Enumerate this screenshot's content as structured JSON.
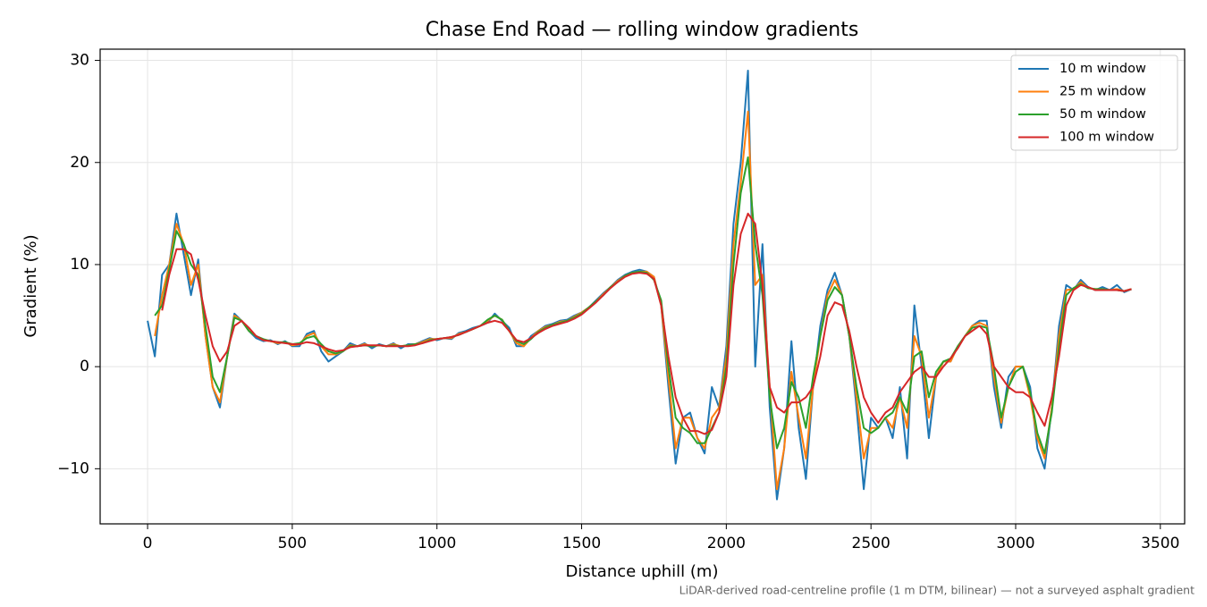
{
  "chart_data": {
    "type": "line",
    "title": "Chase End Road — rolling window gradients",
    "x_label": "Distance uphill (m)",
    "y_label": "Gradient (%)",
    "footnote": "LiDAR-derived road-centreline profile (1 m DTM, bilinear) — not a surveyed asphalt gradient",
    "x": [
      0,
      25,
      50,
      75,
      100,
      125,
      150,
      175,
      200,
      225,
      250,
      275,
      300,
      325,
      350,
      375,
      400,
      425,
      450,
      475,
      500,
      525,
      550,
      575,
      600,
      625,
      650,
      675,
      700,
      725,
      750,
      775,
      800,
      825,
      850,
      875,
      900,
      925,
      950,
      975,
      1000,
      1025,
      1050,
      1075,
      1100,
      1125,
      1150,
      1175,
      1200,
      1225,
      1250,
      1275,
      1300,
      1325,
      1350,
      1375,
      1400,
      1425,
      1450,
      1475,
      1500,
      1525,
      1550,
      1575,
      1600,
      1625,
      1650,
      1675,
      1700,
      1725,
      1750,
      1775,
      1800,
      1825,
      1850,
      1875,
      1900,
      1925,
      1950,
      1975,
      2000,
      2025,
      2050,
      2075,
      2100,
      2125,
      2150,
      2175,
      2200,
      2225,
      2250,
      2275,
      2300,
      2325,
      2350,
      2375,
      2400,
      2425,
      2450,
      2475,
      2500,
      2525,
      2550,
      2575,
      2600,
      2625,
      2650,
      2675,
      2700,
      2725,
      2750,
      2775,
      2800,
      2825,
      2850,
      2875,
      2900,
      2925,
      2950,
      2975,
      3000,
      3025,
      3050,
      3075,
      3100,
      3125,
      3150,
      3175,
      3200,
      3225,
      3250,
      3275,
      3300,
      3325,
      3350,
      3375,
      3400
    ],
    "series": [
      {
        "name": "10 m window",
        "color": "#1f77b4",
        "values": [
          4.5,
          1.0,
          9.0,
          10,
          15,
          11,
          7,
          10.5,
          3,
          -2,
          -4,
          1,
          5.2,
          4.5,
          3.5,
          2.8,
          2.5,
          2.6,
          2.2,
          2.5,
          2.0,
          2.0,
          3.2,
          3.5,
          1.5,
          0.5,
          1.0,
          1.5,
          2.3,
          2.0,
          2.3,
          1.8,
          2.2,
          2.0,
          2.3,
          1.8,
          2.2,
          2.2,
          2.5,
          2.8,
          2.6,
          2.8,
          2.7,
          3.3,
          3.5,
          3.8,
          4.0,
          4.3,
          5.2,
          4.5,
          3.8,
          2.0,
          2.0,
          3.0,
          3.5,
          4.0,
          4.2,
          4.5,
          4.6,
          5.0,
          5.3,
          5.8,
          6.5,
          7.2,
          7.8,
          8.5,
          9.0,
          9.3,
          9.5,
          9.3,
          8.8,
          6,
          -2,
          -9.5,
          -5,
          -4.5,
          -7,
          -8.5,
          -2,
          -4,
          2,
          14,
          20,
          29,
          0,
          12,
          -4,
          -13,
          -8,
          2.5,
          -6,
          -11,
          -2,
          4,
          7.5,
          9.2,
          7,
          3,
          -4,
          -12,
          -5,
          -6,
          -5,
          -7,
          -2,
          -9,
          6,
          0,
          -7,
          -1,
          0.5,
          0.5,
          2,
          3,
          4,
          4.5,
          4.5,
          -2,
          -6,
          -1,
          0,
          0,
          -2,
          -8,
          -10,
          -4,
          4,
          8,
          7.5,
          8.5,
          7.8,
          7.5,
          7.8,
          7.5,
          8,
          7.3,
          7.6
        ]
      },
      {
        "name": "25 m window",
        "color": "#ff7f0e",
        "values": [
          null,
          3,
          7,
          10,
          14,
          12,
          8,
          10,
          3,
          -2,
          -3.5,
          1,
          5,
          4.5,
          3.5,
          3,
          2.6,
          2.5,
          2.3,
          2.4,
          2.1,
          2.2,
          3,
          3.3,
          2,
          1.2,
          1.2,
          1.5,
          2.1,
          2,
          2.2,
          2,
          2.1,
          2,
          2.2,
          2,
          2.1,
          2.2,
          2.4,
          2.7,
          2.7,
          2.8,
          2.8,
          3.2,
          3.4,
          3.7,
          4,
          4.5,
          5,
          4.6,
          3.5,
          2.3,
          2.0,
          2.8,
          3.5,
          3.9,
          4.1,
          4.4,
          4.5,
          4.9,
          5.3,
          5.8,
          6.4,
          7.1,
          7.8,
          8.4,
          8.9,
          9.2,
          9.3,
          9.3,
          8.8,
          6,
          -1,
          -8,
          -5,
          -5,
          -7,
          -8,
          -5,
          -4,
          1,
          12,
          18,
          25,
          8,
          9,
          -2,
          -12,
          -8,
          -0.5,
          -5,
          -9,
          -2,
          3,
          7,
          8.5,
          7,
          3,
          -3,
          -9,
          -6,
          -6,
          -5,
          -6,
          -3,
          -6,
          3,
          1,
          -5,
          -1,
          0.5,
          0.5,
          2,
          3,
          4,
          4.3,
          4,
          -1,
          -5.5,
          -2,
          0,
          0,
          -3,
          -7,
          -9,
          -4,
          3,
          7.5,
          7.6,
          8.3,
          7.7,
          7.6,
          7.6,
          7.5,
          7.6,
          7.4,
          7.6
        ]
      },
      {
        "name": "50 m window",
        "color": "#2ca02c",
        "values": [
          null,
          5,
          6,
          9.5,
          13.3,
          12,
          10,
          9,
          4,
          -1,
          -2.5,
          1,
          4.8,
          4.5,
          3.5,
          3,
          2.7,
          2.5,
          2.4,
          2.4,
          2.2,
          2.3,
          2.8,
          3,
          2.2,
          1.5,
          1.3,
          1.5,
          2,
          2,
          2.1,
          2,
          2.1,
          2,
          2.1,
          2,
          2.1,
          2.2,
          2.3,
          2.6,
          2.7,
          2.8,
          2.9,
          3.1,
          3.4,
          3.7,
          4,
          4.6,
          5,
          4.6,
          3.5,
          2.5,
          2.2,
          2.7,
          3.4,
          3.8,
          4.1,
          4.3,
          4.5,
          4.8,
          5.2,
          5.8,
          6.4,
          7,
          7.8,
          8.3,
          8.9,
          9.2,
          9.3,
          9.2,
          8.5,
          6.5,
          0,
          -5,
          -6,
          -6.5,
          -7.5,
          -7.5,
          -6,
          -4.5,
          0,
          10,
          17,
          20.5,
          12,
          7,
          -3,
          -8,
          -6,
          -1.5,
          -3,
          -6,
          -1,
          3,
          6.5,
          7.8,
          7,
          3,
          -2,
          -6,
          -6.5,
          -6,
          -5,
          -4.5,
          -3,
          -4.5,
          1,
          1.5,
          -3,
          -0.5,
          0.5,
          0.8,
          2,
          3,
          3.8,
          4,
          3.8,
          0,
          -5,
          -2,
          -0.5,
          0,
          -2.5,
          -6.5,
          -8.5,
          -4.5,
          2,
          7,
          7.7,
          8.1,
          7.7,
          7.6,
          7.6,
          7.5,
          7.5,
          7.4,
          7.6
        ]
      },
      {
        "name": "100 m window",
        "color": "#d62728",
        "values": [
          null,
          null,
          5.5,
          9,
          11.5,
          11.5,
          11,
          8.5,
          5,
          2,
          0.5,
          1.5,
          4,
          4.5,
          3.8,
          3,
          2.6,
          2.5,
          2.4,
          2.3,
          2.2,
          2.2,
          2.4,
          2.3,
          2,
          1.7,
          1.5,
          1.6,
          1.9,
          2,
          2.1,
          2.1,
          2.1,
          2,
          2,
          2,
          2,
          2.1,
          2.3,
          2.5,
          2.7,
          2.8,
          2.9,
          3.1,
          3.4,
          3.7,
          4,
          4.3,
          4.5,
          4.3,
          3.5,
          2.6,
          2.4,
          2.8,
          3.3,
          3.7,
          4,
          4.2,
          4.4,
          4.7,
          5.1,
          5.7,
          6.3,
          7,
          7.7,
          8.3,
          8.8,
          9.1,
          9.2,
          9.1,
          8.6,
          6,
          1,
          -3,
          -5,
          -6.3,
          -6.3,
          -6.6,
          -6.2,
          -4.5,
          -1,
          8,
          13,
          15,
          14,
          8,
          -2,
          -4,
          -4.5,
          -3.5,
          -3.5,
          -3,
          -2,
          1,
          5,
          6.3,
          6,
          3.5,
          0,
          -3,
          -4.5,
          -5.5,
          -4.5,
          -4,
          -2.5,
          -1.5,
          -0.5,
          0,
          -1,
          -1,
          0,
          0.8,
          1.8,
          3,
          3.5,
          4,
          3.2,
          0,
          -1,
          -2,
          -2.5,
          -2.5,
          -3,
          -4.5,
          -5.8,
          -3,
          1,
          6,
          7.5,
          8,
          7.8,
          7.5,
          7.5,
          7.5,
          7.5,
          7.4,
          7.6
        ]
      }
    ],
    "xlim": [
      -164,
      3584
    ],
    "ylim": [
      -15.4,
      31.1
    ],
    "xticks": [
      0,
      500,
      1000,
      1500,
      2000,
      2500,
      3000,
      3500
    ],
    "yticks": [
      {
        "value": -10,
        "label": "−10"
      },
      0,
      10,
      20,
      30
    ],
    "grid": true,
    "legend": "upper right"
  }
}
